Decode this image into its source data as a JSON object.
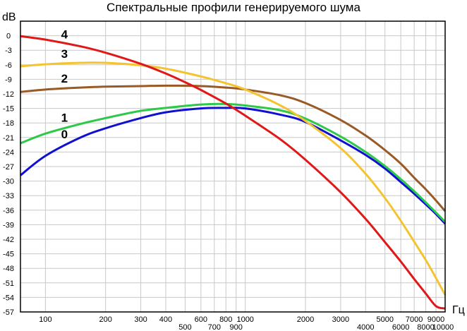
{
  "chart_data": {
    "type": "line",
    "title": "Спектральные профили генерируемого шума",
    "ylabel": "dB",
    "xlabel": "Гц",
    "x_scale": "log",
    "xlim": [
      75,
      10000
    ],
    "ylim": [
      -57,
      3
    ],
    "grid": true,
    "y_ticks": [
      0,
      -3,
      -6,
      -9,
      -12,
      -15,
      -18,
      -21,
      -24,
      -27,
      -30,
      -33,
      -36,
      -39,
      -42,
      -45,
      -48,
      -51,
      -54,
      -57
    ],
    "x_ticks_upper": [
      100,
      200,
      300,
      400,
      600,
      800,
      1000,
      2000,
      3000,
      5000,
      7000,
      9000
    ],
    "x_ticks_lower": [
      500,
      700,
      900,
      4000,
      6000,
      8000,
      10000
    ],
    "series": [
      {
        "name": "0",
        "color": "#1010d0",
        "x": [
          75,
          100,
          150,
          200,
          300,
          400,
          600,
          800,
          1000,
          1500,
          2000,
          3000,
          4000,
          5000,
          6000,
          7000,
          8000,
          9000,
          10000
        ],
        "y": [
          -28.8,
          -24.8,
          -21.0,
          -19.1,
          -17.0,
          -15.8,
          -15.0,
          -14.9,
          -15.0,
          -16.3,
          -17.8,
          -21.6,
          -24.6,
          -27.4,
          -30.2,
          -32.6,
          -34.8,
          -36.8,
          -38.8
        ]
      },
      {
        "name": "1",
        "color": "#2ec84a",
        "x": [
          75,
          100,
          150,
          200,
          300,
          400,
          600,
          800,
          1000,
          1500,
          2000,
          3000,
          4000,
          5000,
          6000,
          7000,
          8000,
          9000,
          10000
        ],
        "y": [
          -22.2,
          -20.2,
          -18.2,
          -17.0,
          -15.5,
          -14.9,
          -14.2,
          -14.1,
          -14.4,
          -15.4,
          -17.1,
          -20.8,
          -24.0,
          -26.9,
          -29.6,
          -32.1,
          -34.4,
          -36.5,
          -38.4
        ]
      },
      {
        "name": "2",
        "color": "#9a5a26",
        "x": [
          75,
          100,
          150,
          200,
          300,
          400,
          600,
          800,
          1000,
          1500,
          2000,
          3000,
          4000,
          5000,
          6000,
          7000,
          8000,
          9000,
          10000
        ],
        "y": [
          -11.6,
          -11.1,
          -10.7,
          -10.5,
          -10.4,
          -10.3,
          -10.4,
          -10.7,
          -11.1,
          -12.3,
          -13.9,
          -17.4,
          -20.6,
          -23.6,
          -26.4,
          -29.3,
          -31.7,
          -34.0,
          -36.2
        ]
      },
      {
        "name": "3",
        "color": "#f4c430",
        "x": [
          75,
          100,
          150,
          200,
          300,
          400,
          600,
          800,
          1000,
          1500,
          2000,
          3000,
          4000,
          5000,
          6000,
          7000,
          8000,
          9000,
          10000
        ],
        "y": [
          -6.3,
          -5.9,
          -5.6,
          -5.6,
          -6.1,
          -6.8,
          -8.4,
          -9.8,
          -11.1,
          -14.4,
          -17.6,
          -23.2,
          -28.5,
          -33.5,
          -38.2,
          -42.5,
          -46.3,
          -50.0,
          -53.5
        ]
      },
      {
        "name": "4",
        "color": "#e01818",
        "x": [
          75,
          100,
          150,
          200,
          300,
          400,
          500,
          600,
          800,
          1000,
          1500,
          2000,
          3000,
          4000,
          5000,
          6000,
          7000,
          8000,
          9000,
          10000
        ],
        "y": [
          -0.1,
          -0.8,
          -2.2,
          -3.5,
          -5.8,
          -7.8,
          -9.6,
          -11.2,
          -14.0,
          -16.5,
          -21.4,
          -25.6,
          -32.3,
          -37.8,
          -42.6,
          -46.6,
          -50.2,
          -53.2,
          -55.8,
          -56.3
        ]
      }
    ]
  }
}
